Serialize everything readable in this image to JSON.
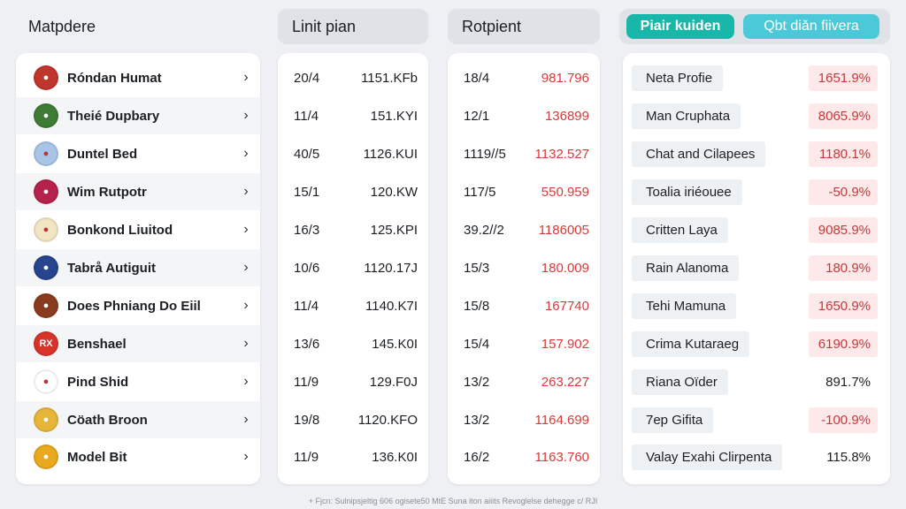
{
  "headers": {
    "col1": "Matpdere",
    "col2": "Linit pian",
    "col3": "Rotpient",
    "tab_a": "Piair kuiden",
    "tab_b": "Qbt diǎn fiivera"
  },
  "companies": [
    {
      "name": "Róndan Humat",
      "logo_color": "#c0362c",
      "logo_text": "●"
    },
    {
      "name": "Theié Dupbary",
      "logo_color": "#3e7b34",
      "logo_text": "●"
    },
    {
      "name": "Duntel Bed",
      "logo_color": "#a8c4e6",
      "logo_text": "●"
    },
    {
      "name": "Wim Rutpotr",
      "logo_color": "#b5234c",
      "logo_text": "●"
    },
    {
      "name": "Bonkond Liuitod",
      "logo_color": "#f2e5c4",
      "logo_text": "●"
    },
    {
      "name": "Tabrå Autiguit",
      "logo_color": "#27458f",
      "logo_text": "●"
    },
    {
      "name": "Does Phniang Do Eiil",
      "logo_color": "#8a3b1d",
      "logo_text": "●"
    },
    {
      "name": "Benshael",
      "logo_color": "#d6332a",
      "logo_text": "RX"
    },
    {
      "name": "Pind Shid",
      "logo_color": "#ffffff",
      "logo_text": "●"
    },
    {
      "name": "Cöath Broon",
      "logo_color": "#e7b53a",
      "logo_text": "●"
    },
    {
      "name": "Model Bit",
      "logo_color": "#e8a91f",
      "logo_text": "●"
    }
  ],
  "col2_rows": [
    {
      "a": "20/4",
      "b": "1151.KFb"
    },
    {
      "a": "11/4",
      "b": "151.KYI"
    },
    {
      "a": "40/5",
      "b": "1126.KUI"
    },
    {
      "a": "15/1",
      "b": "120.KW"
    },
    {
      "a": "16/3",
      "b": "125.KPI"
    },
    {
      "a": "10/6",
      "b": "1120.17J"
    },
    {
      "a": "11/4",
      "b": "1140.K7I"
    },
    {
      "a": "13/6",
      "b": "145.K0I"
    },
    {
      "a": "11/9",
      "b": "129.F0J"
    },
    {
      "a": "19/8",
      "b": "1120.KFO"
    },
    {
      "a": "11/9",
      "b": "136.K0I"
    }
  ],
  "col3_rows": [
    {
      "a": "18/4",
      "b": "981.796"
    },
    {
      "a": "12/1",
      "b": "136899"
    },
    {
      "a": "1119//5",
      "b": "1132.527"
    },
    {
      "a": "117/5",
      "b": "550.959"
    },
    {
      "a": "39.2//2",
      "b": "1186005"
    },
    {
      "a": "15/3",
      "b": "180.009"
    },
    {
      "a": "15/8",
      "b": "167740"
    },
    {
      "a": "15/4",
      "b": "157.902"
    },
    {
      "a": "13/2",
      "b": "263.227"
    },
    {
      "a": "13/2",
      "b": "1164.699"
    },
    {
      "a": "16/2",
      "b": "1163.760"
    }
  ],
  "col4_rows": [
    {
      "label": "Neta Profie",
      "value": "1651.9%",
      "style": "pink"
    },
    {
      "label": "Man Cruphata",
      "value": "8065.9%",
      "style": "pink"
    },
    {
      "label": "Chat and Cilapees",
      "value": "1180.1%",
      "style": "pink"
    },
    {
      "label": "Toalia iriéouee",
      "value": "-50.9%",
      "style": "pink"
    },
    {
      "label": "Critten Laya",
      "value": "9085.9%",
      "style": "pink"
    },
    {
      "label": "Rain Alanoma",
      "value": "180.9%",
      "style": "pink"
    },
    {
      "label": "Tehi Mamuna",
      "value": "1650.9%",
      "style": "pink"
    },
    {
      "label": "Crima Kutaraeg",
      "value": "6190.9%",
      "style": "pink"
    },
    {
      "label": "Riana Oïder",
      "value": "891.7%",
      "style": "plain"
    },
    {
      "label": "7ep Gifita",
      "value": "-100.9%",
      "style": "pink"
    },
    {
      "label": "Valay Exahi Clirpenta",
      "value": "115.8%",
      "style": "plain"
    }
  ],
  "footer": "+ Fjcn: Sulnipsjeltig 606 ogisete50 MtE Suna iton aiiits Revoglelse dehegge c/ RJI"
}
